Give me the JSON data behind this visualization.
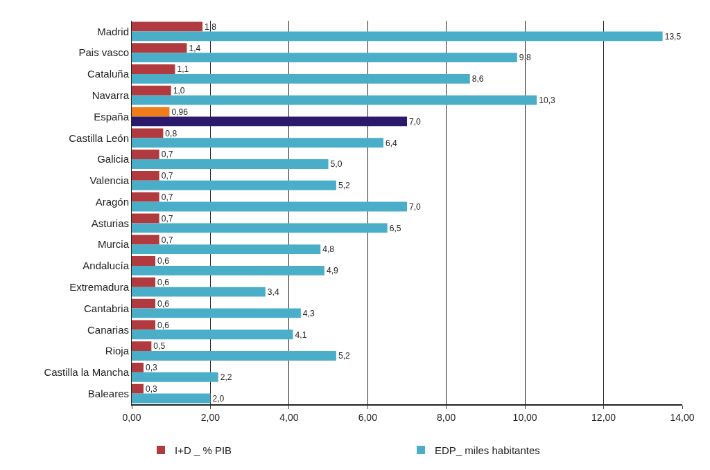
{
  "chart_data": {
    "type": "bar",
    "orientation": "horizontal",
    "categories": [
      "Madrid",
      "Pais vasco",
      "Cataluña",
      "Navarra",
      "España",
      "Castilla León",
      "Galicia",
      "Valencia",
      "Aragón",
      "Asturias",
      "Murcia",
      "Andalucía",
      "Extremadura",
      "Cantabria",
      "Canarias",
      "Rioja",
      "Castilla la Mancha",
      "Baleares"
    ],
    "series": [
      {
        "name": "I+D _ % PIB",
        "color": "#b03a3e",
        "colors": [
          null,
          null,
          null,
          null,
          "#ef7d1a",
          null,
          null,
          null,
          null,
          null,
          null,
          null,
          null,
          null,
          null,
          null,
          null,
          null
        ],
        "values": [
          1.8,
          1.4,
          1.1,
          1.0,
          0.96,
          0.8,
          0.7,
          0.7,
          0.7,
          0.7,
          0.7,
          0.6,
          0.6,
          0.6,
          0.6,
          0.5,
          0.3,
          0.3
        ],
        "value_labels": [
          "1,8",
          "1,4",
          "1,1",
          "1,0",
          "0,96",
          "0,8",
          "0,7",
          "0,7",
          "0,7",
          "0,7",
          "0,7",
          "0,6",
          "0,6",
          "0,6",
          "0,6",
          "0,5",
          "0,3",
          "0,3"
        ]
      },
      {
        "name": "EDP_ miles habitantes",
        "color": "#4aaec9",
        "colors": [
          null,
          null,
          null,
          null,
          "#2b1a6b",
          null,
          null,
          null,
          null,
          null,
          null,
          null,
          null,
          null,
          null,
          null,
          null,
          null
        ],
        "values": [
          13.5,
          9.8,
          8.6,
          10.3,
          7.0,
          6.4,
          5.0,
          5.2,
          7.0,
          6.5,
          4.8,
          4.9,
          3.4,
          4.3,
          4.1,
          5.2,
          2.2,
          2.0
        ],
        "value_labels": [
          "13,5",
          "9,8",
          "8,6",
          "10,3",
          "7,0",
          "6,4",
          "5,0",
          "5,2",
          "7,0",
          "6,5",
          "4,8",
          "4,9",
          "3,4",
          "4,3",
          "4,1",
          "5,2",
          "2,2",
          "2,0"
        ]
      }
    ],
    "xlim": [
      0,
      14
    ],
    "xticks": [
      {
        "value": 0,
        "label": "0,00"
      },
      {
        "value": 2,
        "label": "2,00"
      },
      {
        "value": 4,
        "label": "4,00"
      },
      {
        "value": 6,
        "label": "6,00"
      },
      {
        "value": 8,
        "label": "8,00"
      },
      {
        "value": 10,
        "label": "10,00"
      },
      {
        "value": 12,
        "label": "12,00"
      },
      {
        "value": 14,
        "label": "14,00"
      }
    ],
    "grid": "x",
    "legend": "bottom"
  }
}
